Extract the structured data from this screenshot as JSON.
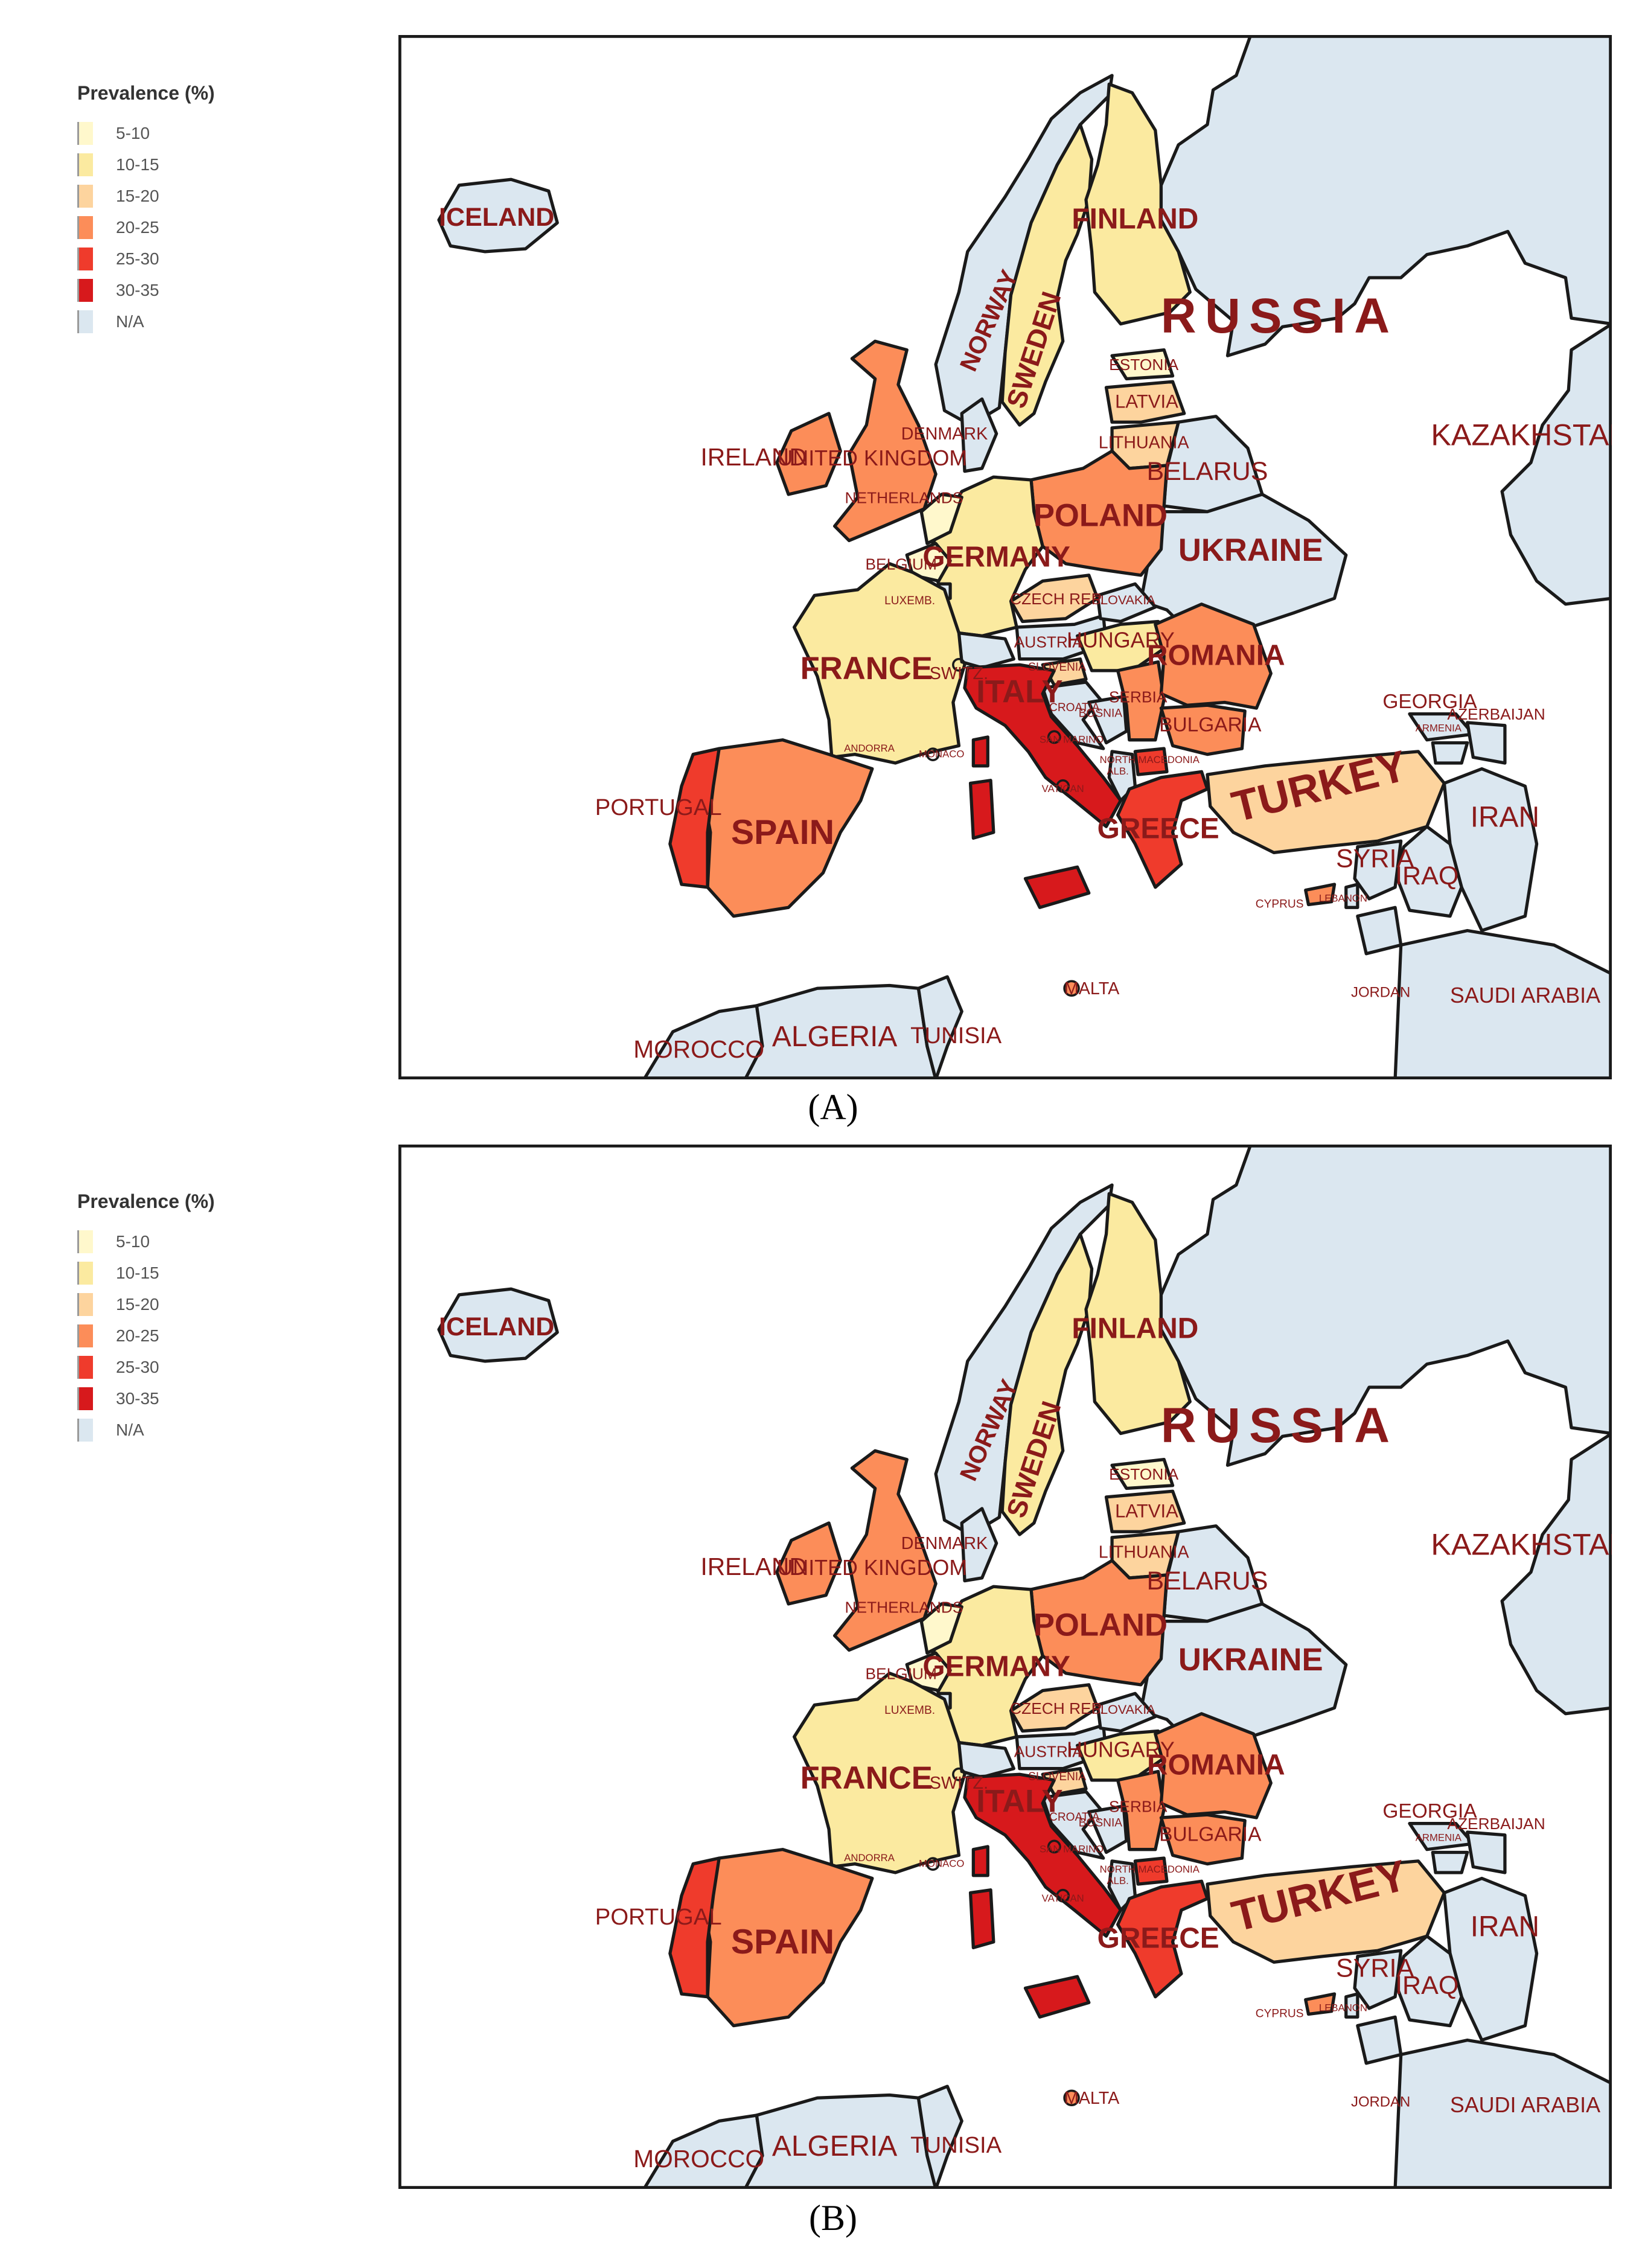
{
  "legend": {
    "title": "Prevalence (%)",
    "classes": [
      {
        "label": "5-10",
        "color": "#fff8cc"
      },
      {
        "label": "10-15",
        "color": "#fbeaa0"
      },
      {
        "label": "15-20",
        "color": "#fdd49e"
      },
      {
        "label": "20-25",
        "color": "#fc8d59"
      },
      {
        "label": "25-30",
        "color": "#ef3b2c"
      },
      {
        "label": "30-35",
        "color": "#d7191c"
      },
      {
        "label": "N/A",
        "color": "#dbe7f0"
      }
    ]
  },
  "colors": {
    "sea": "#ffffff",
    "border": "#1a1a1a",
    "label": "#8b1a1a"
  },
  "panels": [
    {
      "caption": "(A)",
      "countries": {
        "iceland": "N/A",
        "norway": "N/A",
        "sweden": "10-15",
        "finland": "10-15",
        "russia": "N/A",
        "kazakhstan": "N/A",
        "estonia": "5-10",
        "latvia": "15-20",
        "lithuania": "15-20",
        "belarus": "N/A",
        "ukraine": "N/A",
        "poland": "20-25",
        "germany": "10-15",
        "denmark": "N/A",
        "netherlands": "5-10",
        "belgium": "5-10",
        "luxembourg": "N/A",
        "france": "10-15",
        "united_kingdom": "20-25",
        "ireland": "20-25",
        "spain": "20-25",
        "portugal": "25-30",
        "switzerland": "N/A",
        "austria": "N/A",
        "czech_rep": "15-20",
        "slovakia": "N/A",
        "hungary": "10-15",
        "slovenia": "15-20",
        "croatia": "N/A",
        "bosnia": "N/A",
        "serbia": "20-25",
        "romania": "20-25",
        "bulgaria": "20-25",
        "north_macedonia": "25-30",
        "albania": "N/A",
        "greece": "25-30",
        "italy": "30-35",
        "malta": "20-25",
        "turkey": "15-20",
        "cyprus": "20-25",
        "georgia": "N/A",
        "azerbaijan": "N/A",
        "armenia": "N/A",
        "iran": "N/A",
        "iraq": "N/A",
        "syria": "N/A",
        "lebanon": "N/A",
        "jordan": "N/A",
        "saudi_arabia": "N/A",
        "morocco": "N/A",
        "algeria": "N/A",
        "tunisia": "N/A"
      }
    },
    {
      "caption": "(B)",
      "countries": {
        "iceland": "N/A",
        "norway": "N/A",
        "sweden": "10-15",
        "finland": "10-15",
        "russia": "N/A",
        "kazakhstan": "N/A",
        "estonia": "5-10",
        "latvia": "15-20",
        "lithuania": "15-20",
        "belarus": "N/A",
        "ukraine": "N/A",
        "poland": "20-25",
        "germany": "10-15",
        "denmark": "N/A",
        "netherlands": "5-10",
        "belgium": "5-10",
        "luxembourg": "N/A",
        "france": "10-15",
        "united_kingdom": "20-25",
        "ireland": "20-25",
        "spain": "20-25",
        "portugal": "25-30",
        "switzerland": "N/A",
        "austria": "N/A",
        "czech_rep": "15-20",
        "slovakia": "N/A",
        "hungary": "10-15",
        "slovenia": "15-20",
        "croatia": "N/A",
        "bosnia": "N/A",
        "serbia": "20-25",
        "romania": "20-25",
        "bulgaria": "20-25",
        "north_macedonia": "25-30",
        "albania": "N/A",
        "greece": "25-30",
        "italy": "30-35",
        "malta": "20-25",
        "turkey": "15-20",
        "cyprus": "20-25",
        "georgia": "N/A",
        "azerbaijan": "N/A",
        "armenia": "N/A",
        "iran": "N/A",
        "iraq": "N/A",
        "syria": "N/A",
        "lebanon": "N/A",
        "jordan": "N/A",
        "saudi_arabia": "N/A",
        "morocco": "N/A",
        "algeria": "N/A",
        "tunisia": "N/A"
      }
    }
  ],
  "labels": {
    "russia": "RUSSIA",
    "kazakhstan": "KAZAKHSTAN",
    "iceland": "ICELAND",
    "norway": "NORWAY",
    "sweden": "SWEDEN",
    "finland": "FINLAND",
    "estonia": "ESTONIA",
    "latvia": "LATVIA",
    "lithuania": "LITHUANIA",
    "belarus": "BELARUS",
    "ukraine": "UKRAINE",
    "poland": "POLAND",
    "germany": "GERMANY",
    "denmark": "DENMARK",
    "netherlands": "NETHERLANDS",
    "belgium": "BELGIUM",
    "luxembourg": "LUXEMB.",
    "france": "FRANCE",
    "united_kingdom": "UNITED KINGDOM",
    "ireland": "IRELAND",
    "spain": "SPAIN",
    "portugal": "PORTUGAL",
    "switzerland": "SWITZ.",
    "austria": "AUSTRIA",
    "czech_rep": "CZECH REP.",
    "slovakia": "SLOVAKIA",
    "hungary": "HUNGARY",
    "slovenia": "SLOVENIA",
    "croatia": "CROATIA",
    "bosnia": "BOSNIA",
    "serbia": "SERBIA",
    "romania": "ROMANIA",
    "bulgaria": "BULGARIA",
    "north_macedonia": "NORTH MACEDONIA",
    "albania": "ALB.",
    "greece": "GREECE",
    "italy": "ITALY",
    "malta": "MALTA",
    "turkey": "TURKEY",
    "cyprus": "CYPRUS",
    "georgia": "GEORGIA",
    "azerbaijan": "AZERBAIJAN",
    "armenia": "ARMENIA",
    "iran": "IRAN",
    "iraq": "IRAQ",
    "syria": "SYRIA",
    "lebanon": "LEBANON",
    "jordan": "JORDAN",
    "saudi_arabia": "SAUDI ARABIA",
    "morocco": "MOROCCO",
    "algeria": "ALGERIA",
    "tunisia": "TUNISIA",
    "monaco": "MONACO",
    "andorra": "ANDORRA",
    "san_marino": "SAN MARINO",
    "vatican": "VATICAN"
  }
}
